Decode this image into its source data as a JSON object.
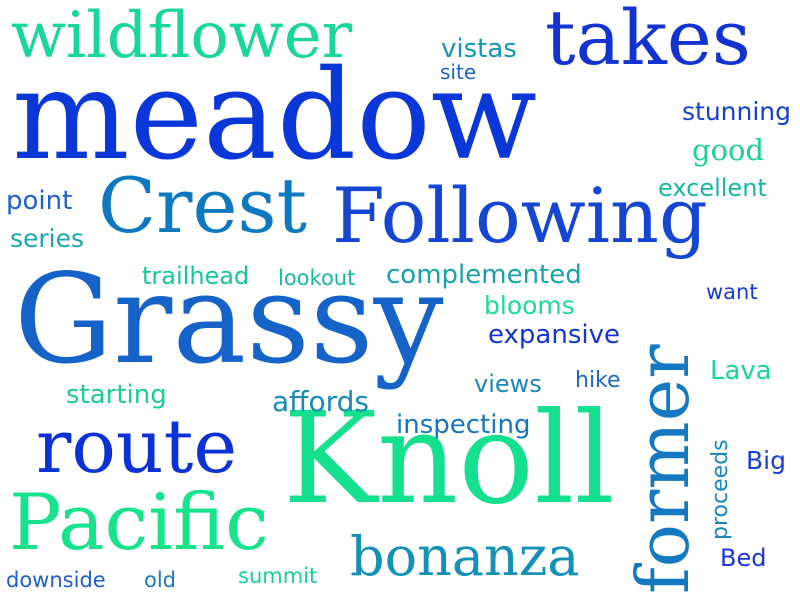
{
  "words": [
    {
      "id": "meadow",
      "text": "meadow",
      "color": "#0b37d9"
    },
    {
      "id": "grassy",
      "text": "Grassy",
      "color": "#1563c8"
    },
    {
      "id": "knoll",
      "text": "Knoll",
      "color": "#14e08d"
    },
    {
      "id": "following",
      "text": "Following",
      "color": "#1546d2"
    },
    {
      "id": "crest",
      "text": "Crest",
      "color": "#0e79bf"
    },
    {
      "id": "wildflower",
      "text": "wildflower",
      "color": "#19d69c"
    },
    {
      "id": "takes",
      "text": "takes",
      "color": "#1233cf"
    },
    {
      "id": "route",
      "text": "route",
      "color": "#0c32d6"
    },
    {
      "id": "pacific",
      "text": "Pacific",
      "color": "#17e38c"
    },
    {
      "id": "former",
      "text": "former",
      "color": "#1579c1"
    },
    {
      "id": "bonanza",
      "text": "bonanza",
      "color": "#1590b6"
    },
    {
      "id": "vistas",
      "text": "vistas",
      "color": "#1696b4"
    },
    {
      "id": "site",
      "text": "site",
      "color": "#1e62c8"
    },
    {
      "id": "stunning",
      "text": "stunning",
      "color": "#1840d3"
    },
    {
      "id": "good",
      "text": "good",
      "color": "#19d097"
    },
    {
      "id": "excellent",
      "text": "excellent",
      "color": "#17b7a5"
    },
    {
      "id": "point",
      "text": "point",
      "color": "#1f5fcc"
    },
    {
      "id": "series",
      "text": "series",
      "color": "#1aa7ac"
    },
    {
      "id": "trailhead",
      "text": "trailhead",
      "color": "#15c69d"
    },
    {
      "id": "lookout",
      "text": "lookout",
      "color": "#16b9a6"
    },
    {
      "id": "complemented",
      "text": "complemented",
      "color": "#16a4ab"
    },
    {
      "id": "want",
      "text": "want",
      "color": "#1a3ad3"
    },
    {
      "id": "blooms",
      "text": "blooms",
      "color": "#1dd996"
    },
    {
      "id": "expansive",
      "text": "expansive",
      "color": "#1435cf"
    },
    {
      "id": "lava",
      "text": "Lava",
      "color": "#19d69a"
    },
    {
      "id": "starting",
      "text": "starting",
      "color": "#1ccb9c"
    },
    {
      "id": "affords",
      "text": "affords",
      "color": "#148bb9"
    },
    {
      "id": "views",
      "text": "views",
      "color": "#1d86bb"
    },
    {
      "id": "hike",
      "text": "hike",
      "color": "#1f68c8"
    },
    {
      "id": "inspecting",
      "text": "inspecting",
      "color": "#1476c2"
    },
    {
      "id": "proceeds",
      "text": "proceeds",
      "color": "#1a88bb"
    },
    {
      "id": "big",
      "text": "Big",
      "color": "#1741d2"
    },
    {
      "id": "bed",
      "text": "Bed",
      "color": "#1c36d4"
    },
    {
      "id": "downside",
      "text": "downside",
      "color": "#1f5ecb"
    },
    {
      "id": "old",
      "text": "old",
      "color": "#1a78c1"
    },
    {
      "id": "summit",
      "text": "summit",
      "color": "#19cf9e"
    }
  ]
}
